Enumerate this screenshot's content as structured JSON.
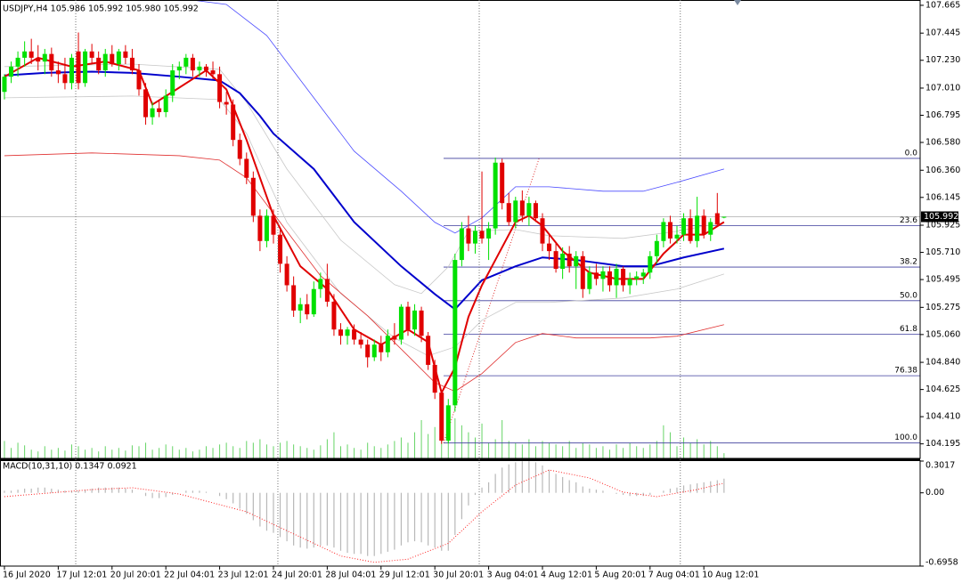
{
  "chart_data": {
    "type": "candlestick",
    "title": "USDJPY,H4  105.986 105.992 105.980 105.992",
    "xlim": [
      -0.66,
      136.16
    ],
    "ylim": [
      104.08,
      107.707
    ],
    "yticks": [
      107.665,
      107.445,
      {
        "value": 107.23,
        "label": "107.230"
      },
      {
        "value": 107.01,
        "label": "107.010"
      },
      106.795,
      {
        "value": 106.58,
        "label": "106.580"
      },
      {
        "value": 106.36,
        "label": "106.360"
      },
      106.145,
      105.925,
      {
        "value": 105.71,
        "label": "105.710"
      },
      105.495,
      105.275,
      {
        "value": 105.06,
        "label": "105.060"
      },
      {
        "value": 104.84,
        "label": "104.840"
      },
      104.625,
      {
        "value": 104.41,
        "label": "104.410"
      },
      104.195
    ],
    "xticks": [
      {
        "value": 0,
        "label": "16 Jul 2020"
      },
      {
        "value": 8,
        "label": "17 Jul 12:01"
      },
      {
        "value": 16,
        "label": "20 Jul 20:01"
      },
      {
        "value": 24,
        "label": "22 Jul 04:01"
      },
      {
        "value": 32,
        "label": "23 Jul 12:01"
      },
      {
        "value": 40,
        "label": "24 Jul 20:01"
      },
      {
        "value": 48,
        "label": "28 Jul 04:01"
      },
      {
        "value": 56,
        "label": "29 Jul 12:01"
      },
      {
        "value": 64,
        "label": "30 Jul 20:01"
      },
      {
        "value": 72,
        "label": "3 Aug 04:01"
      },
      {
        "value": 80,
        "label": "4 Aug 12:01"
      },
      {
        "value": 88,
        "label": "5 Aug 20:01"
      },
      {
        "value": 96,
        "label": "7 Aug 04:01"
      },
      {
        "value": 104,
        "label": "10 Aug 12:01"
      }
    ],
    "separators": [
      10.6,
      40.66,
      70.6,
      100.5
    ],
    "up_color": "#00e000",
    "down_color": "#e00000",
    "current_price": 105.992,
    "price_line_color": "#c0c0c0",
    "ohlc": [
      [
        106.98,
        107.12,
        106.92,
        107.1
      ],
      [
        107.1,
        107.22,
        107.05,
        107.18
      ],
      [
        107.18,
        107.3,
        107.1,
        107.25
      ],
      [
        107.25,
        107.38,
        107.18,
        107.3
      ],
      [
        107.3,
        107.4,
        107.2,
        107.25
      ],
      [
        107.25,
        107.35,
        107.15,
        107.22
      ],
      [
        107.22,
        107.32,
        107.12,
        107.28
      ],
      [
        107.28,
        107.33,
        107.1,
        107.15
      ],
      [
        107.15,
        107.22,
        107.05,
        107.12
      ],
      [
        107.12,
        107.25,
        107.0,
        107.05
      ],
      [
        107.05,
        107.28,
        107.0,
        107.25
      ],
      [
        107.3,
        107.45,
        107.0,
        107.05
      ],
      [
        107.05,
        107.32,
        107.02,
        107.3
      ],
      [
        107.3,
        107.36,
        107.2,
        107.25
      ],
      [
        107.25,
        107.3,
        107.12,
        107.15
      ],
      [
        107.15,
        107.32,
        107.1,
        107.28
      ],
      [
        107.28,
        107.35,
        107.18,
        107.2
      ],
      [
        107.2,
        107.32,
        107.15,
        107.3
      ],
      [
        107.3,
        107.35,
        107.2,
        107.25
      ],
      [
        107.25,
        107.32,
        107.12,
        107.15
      ],
      [
        107.15,
        107.2,
        106.95,
        107.0
      ],
      [
        107.0,
        107.05,
        106.72,
        106.78
      ],
      [
        106.78,
        106.9,
        106.72,
        106.85
      ],
      [
        106.85,
        106.92,
        106.78,
        106.82
      ],
      [
        106.82,
        107.0,
        106.78,
        106.95
      ],
      [
        106.95,
        107.2,
        106.9,
        107.15
      ],
      [
        107.15,
        107.22,
        107.08,
        107.18
      ],
      [
        107.18,
        107.28,
        107.12,
        107.25
      ],
      [
        107.25,
        107.28,
        107.1,
        107.15
      ],
      [
        107.15,
        107.22,
        107.1,
        107.18
      ],
      [
        107.18,
        107.2,
        107.1,
        107.15
      ],
      [
        107.15,
        107.22,
        107.08,
        107.12
      ],
      [
        107.12,
        107.18,
        106.85,
        106.9
      ],
      [
        106.9,
        106.98,
        106.8,
        106.88
      ],
      [
        106.88,
        106.92,
        106.55,
        106.6
      ],
      [
        106.6,
        106.65,
        106.4,
        106.45
      ],
      [
        106.45,
        106.5,
        106.25,
        106.3
      ],
      [
        106.3,
        106.35,
        105.95,
        106.0
      ],
      [
        106.0,
        106.05,
        105.72,
        105.8
      ],
      [
        105.8,
        106.05,
        105.75,
        106.0
      ],
      [
        106.0,
        106.05,
        105.78,
        105.85
      ],
      [
        105.85,
        105.9,
        105.55,
        105.62
      ],
      [
        105.62,
        105.68,
        105.4,
        105.45
      ],
      [
        105.45,
        105.52,
        105.2,
        105.25
      ],
      [
        105.25,
        105.35,
        105.15,
        105.3
      ],
      [
        105.3,
        105.38,
        105.18,
        105.22
      ],
      [
        105.22,
        105.48,
        105.2,
        105.42
      ],
      [
        105.42,
        105.55,
        105.35,
        105.5
      ],
      [
        105.5,
        105.62,
        105.28,
        105.32
      ],
      [
        105.32,
        105.38,
        105.05,
        105.1
      ],
      [
        105.1,
        105.15,
        104.98,
        105.05
      ],
      [
        105.05,
        105.12,
        104.98,
        105.1
      ],
      [
        105.1,
        105.14,
        104.98,
        105.02
      ],
      [
        105.02,
        105.08,
        104.95,
        104.98
      ],
      [
        104.98,
        105.02,
        104.8,
        104.88
      ],
      [
        104.88,
        105.02,
        104.85,
        104.98
      ],
      [
        104.98,
        105.05,
        104.85,
        104.92
      ],
      [
        104.92,
        105.1,
        104.88,
        105.05
      ],
      [
        105.05,
        105.15,
        104.98,
        105.02
      ],
      [
        105.02,
        105.3,
        104.98,
        105.28
      ],
      [
        105.28,
        105.32,
        105.05,
        105.1
      ],
      [
        105.1,
        105.3,
        105.05,
        105.25
      ],
      [
        105.25,
        105.28,
        105.0,
        105.05
      ],
      [
        105.05,
        105.08,
        104.78,
        104.82
      ],
      [
        104.82,
        104.86,
        104.55,
        104.6
      ],
      [
        104.6,
        104.62,
        104.195,
        104.22
      ],
      [
        104.22,
        104.55,
        104.2,
        104.5
      ],
      [
        104.5,
        105.7,
        104.45,
        105.65
      ],
      [
        105.65,
        105.95,
        105.6,
        105.9
      ],
      [
        105.9,
        106.0,
        105.72,
        105.78
      ],
      [
        105.78,
        105.92,
        105.7,
        105.88
      ],
      [
        105.88,
        106.35,
        105.78,
        105.82
      ],
      [
        105.82,
        105.95,
        105.65,
        105.9
      ],
      [
        105.9,
        106.46,
        105.85,
        106.42
      ],
      [
        106.42,
        106.45,
        106.05,
        106.1
      ],
      [
        106.1,
        106.18,
        105.92,
        105.95
      ],
      [
        105.95,
        106.15,
        105.9,
        106.12
      ],
      [
        106.12,
        106.2,
        105.95,
        106.0
      ],
      [
        106.0,
        106.15,
        105.92,
        106.1
      ],
      [
        106.1,
        106.12,
        105.95,
        105.98
      ],
      [
        105.98,
        106.02,
        105.72,
        105.78
      ],
      [
        105.78,
        105.85,
        105.65,
        105.72
      ],
      [
        105.72,
        105.78,
        105.55,
        105.58
      ],
      [
        105.58,
        105.75,
        105.5,
        105.7
      ],
      [
        105.7,
        105.76,
        105.55,
        105.6
      ],
      [
        105.6,
        105.72,
        105.42,
        105.68
      ],
      [
        105.68,
        105.72,
        105.35,
        105.42
      ],
      [
        105.42,
        105.6,
        105.38,
        105.55
      ],
      [
        105.55,
        105.62,
        105.45,
        105.5
      ],
      [
        105.5,
        105.6,
        105.4,
        105.56
      ],
      [
        105.56,
        105.6,
        105.4,
        105.45
      ],
      [
        105.45,
        105.62,
        105.35,
        105.58
      ],
      [
        105.58,
        105.6,
        105.4,
        105.45
      ],
      [
        105.45,
        105.55,
        105.38,
        105.5
      ],
      [
        105.5,
        105.56,
        105.45,
        105.52
      ],
      [
        105.52,
        105.58,
        105.46,
        105.55
      ],
      [
        105.55,
        105.72,
        105.5,
        105.68
      ],
      [
        105.68,
        105.85,
        105.62,
        105.8
      ],
      [
        105.8,
        105.98,
        105.75,
        105.95
      ],
      [
        105.95,
        106.0,
        105.78,
        105.82
      ],
      [
        105.82,
        105.92,
        105.78,
        105.85
      ],
      [
        105.85,
        106.02,
        105.8,
        105.98
      ],
      [
        105.98,
        106.05,
        105.78,
        105.8
      ],
      [
        105.8,
        106.15,
        105.75,
        106.0
      ],
      [
        106.0,
        106.05,
        105.82,
        105.85
      ],
      [
        105.85,
        105.98,
        105.8,
        105.95
      ],
      [
        106.02,
        106.18,
        105.92,
        105.93
      ],
      [
        105.986,
        105.992,
        105.98,
        105.992
      ]
    ],
    "volume_color": "#66d466",
    "volume": [
      20,
      12,
      18,
      15,
      10,
      8,
      14,
      10,
      12,
      9,
      16,
      14,
      10,
      12,
      8,
      14,
      10,
      12,
      9,
      15,
      14,
      18,
      10,
      12,
      16,
      14,
      10,
      12,
      8,
      10,
      14,
      12,
      16,
      18,
      14,
      12,
      20,
      18,
      22,
      16,
      14,
      18,
      20,
      16,
      14,
      12,
      10,
      15,
      22,
      30,
      14,
      16,
      12,
      10,
      18,
      14,
      12,
      16,
      20,
      24,
      18,
      30,
      44,
      28,
      36,
      40,
      35,
      46,
      38,
      30,
      24,
      40,
      18,
      22,
      44,
      20,
      18,
      16,
      22,
      14,
      20,
      18,
      16,
      14,
      20,
      12,
      18,
      16,
      12,
      14,
      10,
      16,
      12,
      18,
      14,
      12,
      16,
      20,
      38,
      30,
      14,
      24,
      18,
      22,
      16,
      20,
      14,
      6
    ],
    "lines": [
      {
        "color": "#c8c8c8",
        "width": 0.8,
        "x": [
          0,
          19,
          32,
          36,
          42,
          50,
          58,
          62,
          66,
          69,
          76,
          81,
          92,
          100,
          107
        ],
        "values": [
          107.18,
          107.2,
          107.158,
          106.898,
          106.37,
          105.807,
          105.455,
          105.384,
          105.596,
          105.877,
          105.891,
          105.842,
          105.821,
          105.877,
          105.948
        ]
      },
      {
        "color": "#c8c8c8",
        "width": 0.8,
        "x": [
          0,
          19,
          32,
          36,
          42,
          50,
          58,
          63,
          67,
          71,
          76,
          81,
          92,
          100,
          107
        ],
        "values": [
          106.933,
          106.947,
          106.919,
          106.651,
          105.948,
          105.384,
          105.033,
          104.892,
          104.962,
          105.173,
          105.314,
          105.314,
          105.349,
          105.42,
          105.539
        ]
      },
      {
        "color": "#4a4aff",
        "width": 0.8,
        "x": [
          26,
          33,
          39,
          46,
          52,
          59,
          64,
          67,
          71,
          76,
          81,
          89,
          95,
          100,
          107
        ],
        "values": [
          107.72,
          107.672,
          107.426,
          106.933,
          106.511,
          106.194,
          105.948,
          105.863,
          105.983,
          106.229,
          106.229,
          106.194,
          106.194,
          106.264,
          106.37
        ]
      },
      {
        "color": "#e03030",
        "width": 0.8,
        "x": [
          0,
          13,
          26,
          32,
          36,
          42,
          47,
          54,
          60,
          64,
          67,
          71,
          76,
          80,
          85,
          92,
          96,
          100,
          107
        ],
        "values": [
          106.475,
          106.497,
          106.475,
          106.44,
          106.3,
          105.877,
          105.525,
          105.208,
          104.892,
          104.68,
          104.61,
          104.751,
          104.997,
          105.068,
          105.033,
          105.033,
          105.033,
          105.047,
          105.138
        ]
      },
      {
        "color": "#0000cc",
        "width": 2,
        "x": [
          0,
          6,
          13,
          19,
          26,
          32,
          35,
          38,
          40,
          46,
          52,
          59,
          64,
          67,
          71,
          76,
          80,
          85,
          92,
          96,
          101,
          107
        ],
        "values": [
          107.11,
          107.13,
          107.14,
          107.13,
          107.1,
          107.07,
          106.97,
          106.79,
          106.65,
          106.37,
          105.95,
          105.6,
          105.38,
          105.26,
          105.49,
          105.6,
          105.67,
          105.65,
          105.6,
          105.6,
          105.67,
          105.74
        ]
      },
      {
        "color": "#e00000",
        "width": 2,
        "x": [
          0,
          5,
          10,
          15,
          20,
          22,
          25,
          30,
          33,
          36,
          40,
          44,
          48,
          52,
          56,
          60,
          63,
          65,
          67,
          69,
          71,
          73,
          76,
          78,
          80,
          83,
          87,
          91,
          95,
          98,
          101,
          104,
          107
        ],
        "values": [
          107.1,
          107.25,
          107.18,
          107.22,
          107.15,
          106.88,
          106.98,
          107.15,
          107.0,
          106.6,
          106.0,
          105.6,
          105.42,
          105.1,
          104.98,
          105.1,
          105.0,
          104.6,
          104.8,
          105.2,
          105.45,
          105.65,
          105.95,
          106.0,
          105.92,
          105.72,
          105.55,
          105.5,
          105.5,
          105.7,
          105.85,
          105.85,
          105.95
        ]
      }
    ],
    "fibonacci": {
      "start": 65.3,
      "trend_end": 79.5,
      "high": 106.454,
      "low": 104.202,
      "color": "#3c3c9c",
      "trend_color": "#e03030",
      "levels": [
        {
          "value": 0,
          "label": "0.0"
        },
        23.6,
        38.2,
        {
          "value": 50,
          "label": "50.0"
        },
        61.8,
        76.38,
        {
          "value": 100,
          "label": "100.0"
        }
      ]
    },
    "macd": {
      "title": "MACD(10,31,10) 0.1347 0.0921",
      "ylim": [
        -0.6958,
        0.3017
      ],
      "yticks": [
        0.3017,
        {
          "value": 0,
          "label": "0.00"
        },
        -0.6958
      ],
      "histogram_color": "#b8b8b8",
      "histogram": [
        0.02,
        0.02,
        0.03,
        0.04,
        0.04,
        0.05,
        0.05,
        0.04,
        0.03,
        0.02,
        0.02,
        0.02,
        0.03,
        0.04,
        0.05,
        0.05,
        0.05,
        0.05,
        0.04,
        0.03,
        0.0,
        -0.03,
        -0.05,
        -0.05,
        -0.04,
        -0.02,
        0.0,
        0.02,
        0.02,
        0.02,
        0.01,
        0.0,
        -0.03,
        -0.06,
        -0.1,
        -0.15,
        -0.2,
        -0.26,
        -0.32,
        -0.36,
        -0.38,
        -0.42,
        -0.46,
        -0.5,
        -0.52,
        -0.53,
        -0.52,
        -0.5,
        -0.5,
        -0.52,
        -0.55,
        -0.57,
        -0.58,
        -0.58,
        -0.6,
        -0.6,
        -0.58,
        -0.56,
        -0.54,
        -0.5,
        -0.47,
        -0.46,
        -0.47,
        -0.5,
        -0.52,
        -0.55,
        -0.55,
        -0.4,
        -0.25,
        -0.12,
        -0.02,
        0.05,
        0.1,
        0.18,
        0.24,
        0.27,
        0.29,
        0.3,
        0.3,
        0.29,
        0.26,
        0.22,
        0.18,
        0.15,
        0.12,
        0.1,
        0.06,
        0.04,
        0.03,
        0.02,
        0.0,
        -0.01,
        -0.02,
        -0.03,
        -0.03,
        -0.03,
        -0.02,
        0.0,
        0.02,
        0.04,
        0.05,
        0.07,
        0.08,
        0.09,
        0.1,
        0.11,
        0.12,
        0.1347
      ],
      "signal": {
        "color": "#ff2020",
        "x": [
          0,
          13,
          19,
          26,
          36,
          43,
          50,
          55,
          60,
          66,
          71,
          76,
          81,
          87,
          92,
          97,
          103,
          107
        ],
        "values": [
          -0.036,
          0.031,
          0.048,
          -0.011,
          -0.18,
          -0.39,
          -0.6,
          -0.66,
          -0.63,
          -0.48,
          -0.18,
          0.074,
          0.217,
          0.141,
          0.006,
          -0.036,
          0.031,
          0.0921
        ]
      }
    }
  }
}
